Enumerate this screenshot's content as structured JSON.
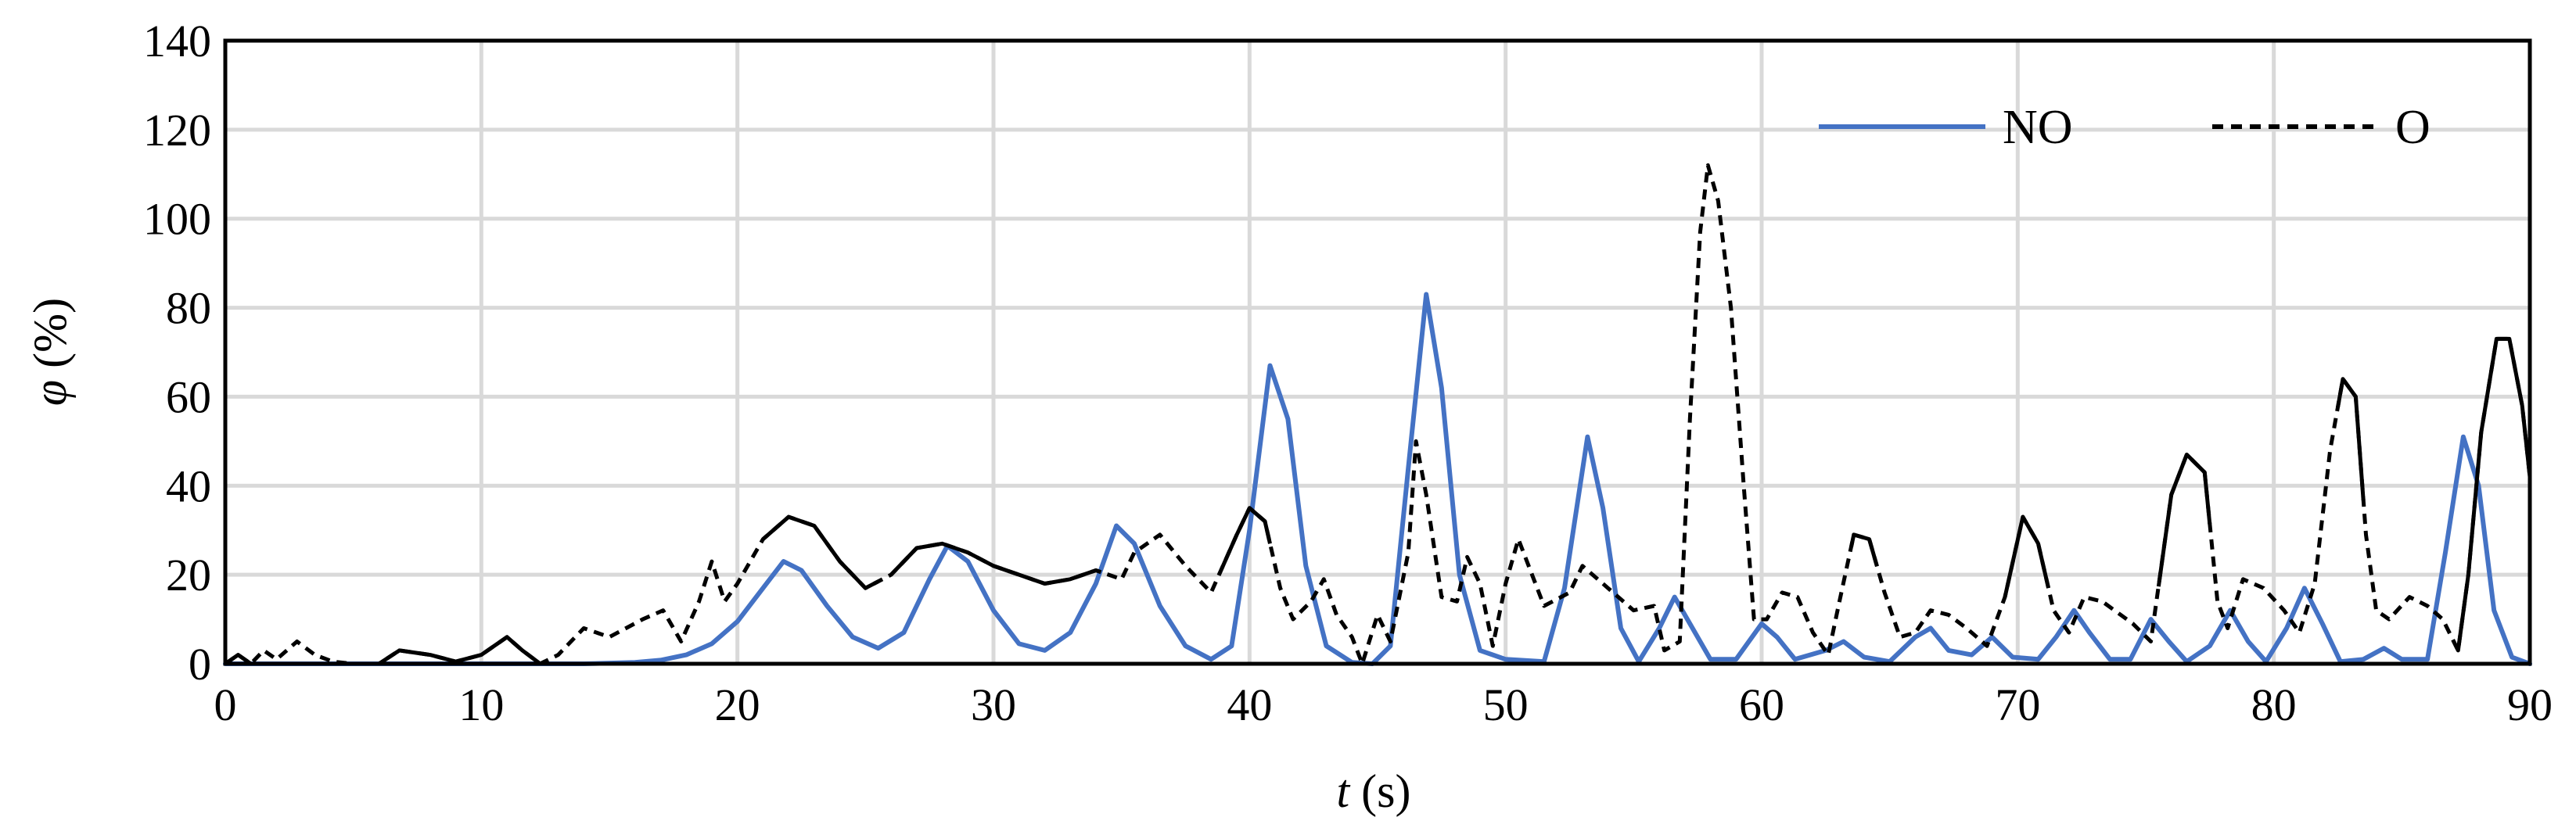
{
  "chart_data": {
    "type": "line",
    "title": "",
    "xlabel": {
      "var": "t",
      "unit": " (s)"
    },
    "ylabel": {
      "var": "φ",
      "unit": " (%)"
    },
    "xlim": [
      0,
      90
    ],
    "ylim": [
      0,
      140
    ],
    "xticks": [
      0,
      10,
      20,
      30,
      40,
      50,
      60,
      70,
      80,
      90
    ],
    "yticks": [
      0,
      20,
      40,
      60,
      80,
      100,
      120,
      140
    ],
    "grid": true,
    "legend": "top-right",
    "series": [
      {
        "name": "NO",
        "color": "#4472c4",
        "style": "solid",
        "points": [
          [
            0,
            0
          ],
          [
            10,
            0
          ],
          [
            14,
            0
          ],
          [
            16,
            0.3
          ],
          [
            17,
            0.8
          ],
          [
            18,
            2
          ],
          [
            19,
            4.5
          ],
          [
            20,
            9.5
          ],
          [
            21,
            17
          ],
          [
            21.8,
            23
          ],
          [
            22.5,
            21
          ],
          [
            23.5,
            13
          ],
          [
            24.5,
            6
          ],
          [
            25.5,
            3.5
          ],
          [
            26.5,
            7
          ],
          [
            27.5,
            19
          ],
          [
            28.2,
            26.5
          ],
          [
            29,
            23
          ],
          [
            30,
            12
          ],
          [
            31,
            4.5
          ],
          [
            32,
            3
          ],
          [
            33,
            7
          ],
          [
            34,
            18
          ],
          [
            34.8,
            31
          ],
          [
            35.5,
            27
          ],
          [
            36.5,
            13
          ],
          [
            37.5,
            4
          ],
          [
            38.5,
            1
          ],
          [
            39.3,
            4
          ],
          [
            40,
            30
          ],
          [
            40.8,
            67
          ],
          [
            41.5,
            55
          ],
          [
            42.2,
            22
          ],
          [
            43,
            4
          ],
          [
            44,
            0.3
          ],
          [
            44.8,
            0
          ],
          [
            45.5,
            4
          ],
          [
            46.2,
            44
          ],
          [
            46.9,
            83
          ],
          [
            47.5,
            62
          ],
          [
            48.2,
            20
          ],
          [
            49,
            3
          ],
          [
            50,
            1
          ],
          [
            51.5,
            0.5
          ],
          [
            52.3,
            17
          ],
          [
            53.2,
            51
          ],
          [
            53.8,
            35
          ],
          [
            54.5,
            8
          ],
          [
            55.2,
            0.5
          ],
          [
            56,
            8
          ],
          [
            56.6,
            15
          ],
          [
            57.2,
            9
          ],
          [
            58,
            1
          ],
          [
            59,
            1
          ],
          [
            60,
            9
          ],
          [
            60.6,
            6
          ],
          [
            61.3,
            1
          ],
          [
            62.5,
            3
          ],
          [
            63.2,
            5
          ],
          [
            64,
            1.5
          ],
          [
            65,
            0.5
          ],
          [
            66,
            6
          ],
          [
            66.6,
            8
          ],
          [
            67.3,
            3
          ],
          [
            68.2,
            2
          ],
          [
            69,
            6
          ],
          [
            69.8,
            1.5
          ],
          [
            70.8,
            1
          ],
          [
            71.5,
            6
          ],
          [
            72.2,
            12
          ],
          [
            72.8,
            7
          ],
          [
            73.6,
            1
          ],
          [
            74.4,
            1
          ],
          [
            75.2,
            10
          ],
          [
            75.9,
            5
          ],
          [
            76.6,
            0.5
          ],
          [
            77.5,
            4
          ],
          [
            78.3,
            12
          ],
          [
            79,
            5
          ],
          [
            79.7,
            0.5
          ],
          [
            80.5,
            8
          ],
          [
            81.2,
            17
          ],
          [
            81.9,
            9
          ],
          [
            82.6,
            0.5
          ],
          [
            83.5,
            1
          ],
          [
            84.3,
            3.5
          ],
          [
            85,
            1
          ],
          [
            86,
            1
          ],
          [
            86.7,
            25
          ],
          [
            87.4,
            51
          ],
          [
            88,
            40
          ],
          [
            88.6,
            12
          ],
          [
            89.3,
            1.5
          ],
          [
            90,
            0
          ]
        ]
      },
      {
        "name": "O",
        "color": "#000000",
        "style": "mixed",
        "points": [
          [
            0,
            0
          ],
          [
            0.5,
            2
          ],
          [
            1,
            0
          ],
          [
            1.5,
            3
          ],
          [
            2,
            1
          ],
          [
            2.8,
            5
          ],
          [
            3.5,
            2
          ],
          [
            4.2,
            0.5
          ],
          [
            5,
            0
          ],
          [
            6,
            0
          ],
          [
            6.8,
            3
          ],
          [
            8,
            2
          ],
          [
            9,
            0.5
          ],
          [
            10,
            2
          ],
          [
            11,
            6
          ],
          [
            11.6,
            3
          ],
          [
            12.3,
            0
          ],
          [
            13,
            2
          ],
          [
            14,
            8
          ],
          [
            15,
            6
          ],
          [
            16.3,
            10
          ],
          [
            17.1,
            12
          ],
          [
            17.8,
            5
          ],
          [
            18.5,
            14
          ],
          [
            19,
            23
          ],
          [
            19.5,
            14
          ],
          [
            20,
            18
          ],
          [
            21,
            28
          ],
          [
            22,
            33
          ],
          [
            23,
            31
          ],
          [
            24,
            23
          ],
          [
            25,
            17
          ],
          [
            26,
            20
          ],
          [
            27,
            26
          ],
          [
            28,
            27
          ],
          [
            29,
            25
          ],
          [
            30,
            22
          ],
          [
            31,
            20
          ],
          [
            32,
            18
          ],
          [
            33,
            19
          ],
          [
            34,
            21
          ],
          [
            35,
            19
          ],
          [
            35.5,
            25
          ],
          [
            36.5,
            29
          ],
          [
            37.5,
            22
          ],
          [
            38.5,
            16
          ],
          [
            39.5,
            29
          ],
          [
            40,
            35
          ],
          [
            40.6,
            32
          ],
          [
            41.2,
            17
          ],
          [
            41.7,
            10
          ],
          [
            42.4,
            14
          ],
          [
            42.9,
            19
          ],
          [
            43.4,
            11
          ],
          [
            44,
            6
          ],
          [
            44.4,
            0
          ],
          [
            45,
            11
          ],
          [
            45.5,
            5
          ],
          [
            46.2,
            25
          ],
          [
            46.5,
            50
          ],
          [
            46.9,
            38
          ],
          [
            47.5,
            15
          ],
          [
            48.1,
            14
          ],
          [
            48.5,
            24
          ],
          [
            49,
            18
          ],
          [
            49.5,
            4
          ],
          [
            50,
            18
          ],
          [
            50.5,
            28
          ],
          [
            51.5,
            13
          ],
          [
            52.5,
            16
          ],
          [
            53,
            22
          ],
          [
            54,
            17
          ],
          [
            55,
            12
          ],
          [
            55.8,
            13
          ],
          [
            56.2,
            3
          ],
          [
            56.8,
            5
          ],
          [
            57.2,
            55
          ],
          [
            57.6,
            97
          ],
          [
            57.9,
            112
          ],
          [
            58.3,
            104
          ],
          [
            58.8,
            80
          ],
          [
            59.3,
            40
          ],
          [
            59.7,
            10
          ],
          [
            60.2,
            10
          ],
          [
            60.8,
            16
          ],
          [
            61.4,
            15
          ],
          [
            62,
            7
          ],
          [
            62.6,
            2
          ],
          [
            63,
            13
          ],
          [
            63.6,
            29
          ],
          [
            64.2,
            28
          ],
          [
            64.8,
            16
          ],
          [
            65.4,
            6
          ],
          [
            66,
            7
          ],
          [
            66.6,
            12
          ],
          [
            67.3,
            11
          ],
          [
            68,
            8
          ],
          [
            68.8,
            4
          ],
          [
            69.5,
            15
          ],
          [
            70.2,
            33
          ],
          [
            70.8,
            27
          ],
          [
            71.4,
            12
          ],
          [
            72,
            7
          ],
          [
            72.6,
            15
          ],
          [
            73.3,
            14
          ],
          [
            74.5,
            9
          ],
          [
            75.2,
            5
          ],
          [
            76,
            38
          ],
          [
            76.6,
            47
          ],
          [
            77.3,
            43
          ],
          [
            77.8,
            14
          ],
          [
            78.2,
            8
          ],
          [
            78.8,
            19
          ],
          [
            79.6,
            17
          ],
          [
            80.4,
            12
          ],
          [
            81,
            7
          ],
          [
            81.6,
            18
          ],
          [
            82.2,
            48
          ],
          [
            82.7,
            64
          ],
          [
            83.2,
            60
          ],
          [
            83.6,
            29
          ],
          [
            84,
            12
          ],
          [
            84.5,
            10
          ],
          [
            85.3,
            15
          ],
          [
            86,
            13
          ],
          [
            86.6,
            10
          ],
          [
            87.2,
            3
          ],
          [
            87.6,
            20
          ],
          [
            88.1,
            52
          ],
          [
            88.7,
            73
          ],
          [
            89.2,
            73
          ],
          [
            89.7,
            58
          ],
          [
            90,
            42
          ]
        ],
        "solid_ranges": [
          [
            0,
            1
          ],
          [
            5.5,
            12.5
          ],
          [
            21,
            25.5
          ],
          [
            26,
            34.2
          ],
          [
            38.8,
            40.8
          ],
          [
            63.5,
            64.5
          ],
          [
            69.5,
            71.2
          ],
          [
            75.5,
            77.5
          ],
          [
            82.5,
            83.5
          ],
          [
            87,
            90
          ]
        ]
      }
    ]
  }
}
